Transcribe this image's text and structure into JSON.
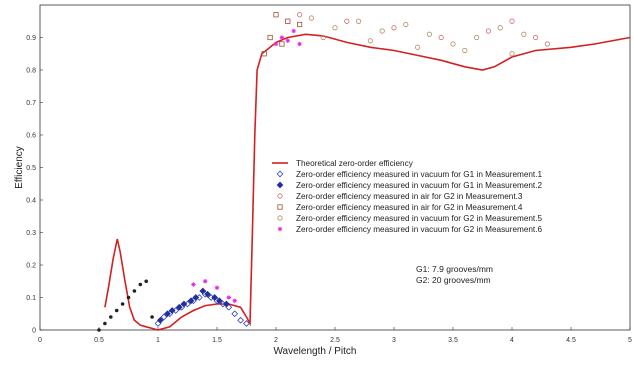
{
  "chart_data": {
    "type": "scatter",
    "xlabel": "Wavelength / Pitch",
    "ylabel": "Efficiency",
    "xlim": [
      0,
      5
    ],
    "ylim": [
      0,
      1.0
    ],
    "xticks": [
      {
        "value": 0,
        "label": "0"
      },
      {
        "value": 0.5,
        "label": "0.5"
      },
      {
        "value": 1,
        "label": "1"
      },
      {
        "value": 1.5,
        "label": "1.5"
      },
      {
        "value": 2,
        "label": "2"
      },
      {
        "value": 2.5,
        "label": "2.5"
      },
      {
        "value": 3,
        "label": "3"
      },
      {
        "value": 3.5,
        "label": "3.5"
      },
      {
        "value": 4,
        "label": "4"
      },
      {
        "value": 4.5,
        "label": "4.5"
      },
      {
        "value": 5,
        "label": "5"
      }
    ],
    "yticks": [
      {
        "value": 0,
        "label": "0"
      },
      {
        "value": 0.1,
        "label": "0.1"
      },
      {
        "value": 0.2,
        "label": "0.2"
      },
      {
        "value": 0.3,
        "label": "0.3"
      },
      {
        "value": 0.4,
        "label": "0.4"
      },
      {
        "value": 0.5,
        "label": "0.5"
      },
      {
        "value": 0.6,
        "label": "0.6"
      },
      {
        "value": 0.7,
        "label": "0.7"
      },
      {
        "value": 0.8,
        "label": "0.8"
      },
      {
        "value": 0.9,
        "label": "0.9"
      }
    ],
    "grid": false,
    "legend_position": "center-right",
    "annotations": [
      "G1: 7.9 grooves/mm",
      "G2: 20  grooves/mm"
    ],
    "series": [
      {
        "name": "Theoretical zero-order efficiency",
        "kind": "line",
        "color": "#d42020",
        "marker": "line",
        "points": [
          [
            0.55,
            0.07
          ],
          [
            0.58,
            0.13
          ],
          [
            0.62,
            0.22
          ],
          [
            0.655,
            0.28
          ],
          [
            0.68,
            0.24
          ],
          [
            0.72,
            0.15
          ],
          [
            0.76,
            0.07
          ],
          [
            0.8,
            0.03
          ],
          [
            0.85,
            0.015
          ],
          [
            0.9,
            0.01
          ],
          [
            0.95,
            0.005
          ],
          [
            1.0,
            0.0
          ],
          [
            1.05,
            0.005
          ],
          [
            1.1,
            0.01
          ],
          [
            1.15,
            0.025
          ],
          [
            1.2,
            0.04
          ],
          [
            1.3,
            0.06
          ],
          [
            1.4,
            0.075
          ],
          [
            1.5,
            0.08
          ],
          [
            1.6,
            0.08
          ],
          [
            1.7,
            0.07
          ],
          [
            1.75,
            0.04
          ],
          [
            1.78,
            0.02
          ],
          [
            1.8,
            0.3
          ],
          [
            1.82,
            0.6
          ],
          [
            1.84,
            0.8
          ],
          [
            1.88,
            0.85
          ],
          [
            1.95,
            0.87
          ],
          [
            2.0,
            0.885
          ],
          [
            2.1,
            0.9
          ],
          [
            2.25,
            0.91
          ],
          [
            2.4,
            0.905
          ],
          [
            2.6,
            0.885
          ],
          [
            2.8,
            0.87
          ],
          [
            3.0,
            0.86
          ],
          [
            3.2,
            0.845
          ],
          [
            3.4,
            0.83
          ],
          [
            3.6,
            0.81
          ],
          [
            3.75,
            0.8
          ],
          [
            3.85,
            0.81
          ],
          [
            4.0,
            0.84
          ],
          [
            4.2,
            0.86
          ],
          [
            4.5,
            0.87
          ],
          [
            4.7,
            0.88
          ],
          [
            5.0,
            0.9
          ]
        ]
      },
      {
        "name": "Zero-order efficiency measured in vacuum for G1 in Measurement.1",
        "kind": "scatter",
        "color": "#3040c0",
        "marker": "diamond-open",
        "points": [
          [
            1.0,
            0.02
          ],
          [
            1.05,
            0.04
          ],
          [
            1.1,
            0.05
          ],
          [
            1.15,
            0.06
          ],
          [
            1.2,
            0.07
          ],
          [
            1.25,
            0.08
          ],
          [
            1.3,
            0.09
          ],
          [
            1.35,
            0.1
          ],
          [
            1.4,
            0.11
          ],
          [
            1.45,
            0.1
          ],
          [
            1.5,
            0.09
          ],
          [
            1.55,
            0.08
          ],
          [
            1.6,
            0.07
          ],
          [
            1.65,
            0.05
          ],
          [
            1.7,
            0.03
          ],
          [
            1.75,
            0.02
          ]
        ]
      },
      {
        "name": "Zero-order efficiency measured in vacuum for G1 in Measurement.2",
        "kind": "scatter",
        "color": "#2030a0",
        "marker": "diamond-dot",
        "points": [
          [
            1.02,
            0.03
          ],
          [
            1.08,
            0.05
          ],
          [
            1.12,
            0.06
          ],
          [
            1.18,
            0.07
          ],
          [
            1.22,
            0.08
          ],
          [
            1.28,
            0.09
          ],
          [
            1.32,
            0.1
          ],
          [
            1.38,
            0.12
          ],
          [
            1.42,
            0.11
          ],
          [
            1.48,
            0.1
          ],
          [
            1.52,
            0.09
          ],
          [
            1.58,
            0.08
          ]
        ]
      },
      {
        "name": "Zero-order efficiency measured in air for G2 in Measurement.3",
        "kind": "scatter",
        "color": "#d07070",
        "marker": "circle-open",
        "points": [
          [
            2.2,
            0.97
          ],
          [
            2.6,
            0.95
          ],
          [
            3.0,
            0.93
          ],
          [
            3.4,
            0.9
          ],
          [
            3.8,
            0.92
          ],
          [
            4.0,
            0.95
          ],
          [
            4.2,
            0.9
          ],
          [
            4.3,
            0.88
          ]
        ]
      },
      {
        "name": "Zero-order efficiency measured in air for G2 in Measurement.4",
        "kind": "scatter",
        "color": "#a05030",
        "marker": "square-open",
        "points": [
          [
            1.95,
            0.9
          ],
          [
            2.0,
            0.97
          ],
          [
            2.1,
            0.95
          ],
          [
            2.2,
            0.94
          ],
          [
            1.9,
            0.85
          ],
          [
            2.05,
            0.88
          ]
        ]
      },
      {
        "name": "Zero-order efficiency measured in vacuum for G2 in Measurement.5",
        "kind": "scatter",
        "color": "#b0906a",
        "marker": "circle-open",
        "points": [
          [
            2.3,
            0.96
          ],
          [
            2.5,
            0.93
          ],
          [
            2.7,
            0.95
          ],
          [
            2.9,
            0.92
          ],
          [
            3.1,
            0.94
          ],
          [
            3.3,
            0.91
          ],
          [
            3.5,
            0.88
          ],
          [
            3.7,
            0.9
          ],
          [
            3.9,
            0.93
          ],
          [
            4.1,
            0.91
          ],
          [
            2.4,
            0.9
          ],
          [
            2.8,
            0.89
          ],
          [
            3.2,
            0.87
          ],
          [
            3.6,
            0.86
          ],
          [
            4.0,
            0.85
          ]
        ]
      },
      {
        "name": "Zero-order efficiency measured in vacuum for G2 in Measurement.6",
        "kind": "scatter",
        "color": "#e030e0",
        "marker": "star",
        "points": [
          [
            1.3,
            0.14
          ],
          [
            1.4,
            0.15
          ],
          [
            1.5,
            0.13
          ],
          [
            1.6,
            0.1
          ],
          [
            1.65,
            0.09
          ],
          [
            2.0,
            0.88
          ],
          [
            2.05,
            0.9
          ],
          [
            2.1,
            0.89
          ],
          [
            2.15,
            0.92
          ],
          [
            2.2,
            0.88
          ]
        ]
      },
      {
        "name": "",
        "kind": "scatter",
        "color": "#222222",
        "marker": "dot",
        "points": [
          [
            0.5,
            0.0
          ],
          [
            0.55,
            0.02
          ],
          [
            0.6,
            0.04
          ],
          [
            0.65,
            0.06
          ],
          [
            0.7,
            0.08
          ],
          [
            0.75,
            0.1
          ],
          [
            0.8,
            0.12
          ],
          [
            0.85,
            0.14
          ],
          [
            0.9,
            0.15
          ],
          [
            0.95,
            0.04
          ]
        ]
      }
    ]
  }
}
